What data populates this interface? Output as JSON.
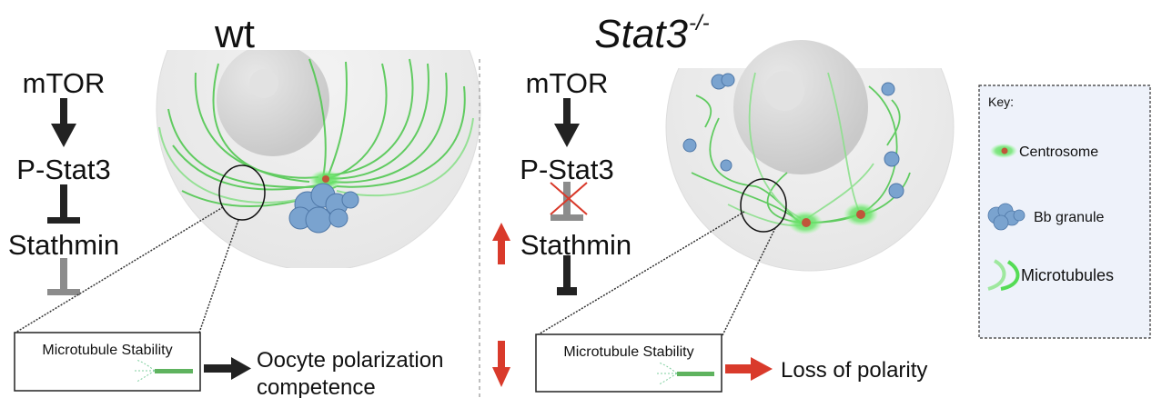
{
  "wt": {
    "title": "wt",
    "pathway": [
      "mTOR",
      "P-Stat3",
      "Stathmin"
    ],
    "box_label": "Microtubule Stability",
    "outcome_line1": "Oocyte polarization",
    "outcome_line2": "competence"
  },
  "ko": {
    "title": "Stat3",
    "title_superscript": "-/-",
    "pathway": [
      "mTOR",
      "P-Stat3",
      "Stathmin"
    ],
    "box_label": "Microtubule Stability",
    "outcome": "Loss of polarity"
  },
  "key": {
    "title": "Key:",
    "items": [
      "Centrosome",
      "Bb granule",
      "Microtubules"
    ]
  },
  "colors": {
    "red": "#d93a2b",
    "green": "#4fd24f",
    "gray": "#8c8c8c",
    "key_bg": "#eef2fa",
    "granule": "#6f9bc9"
  }
}
